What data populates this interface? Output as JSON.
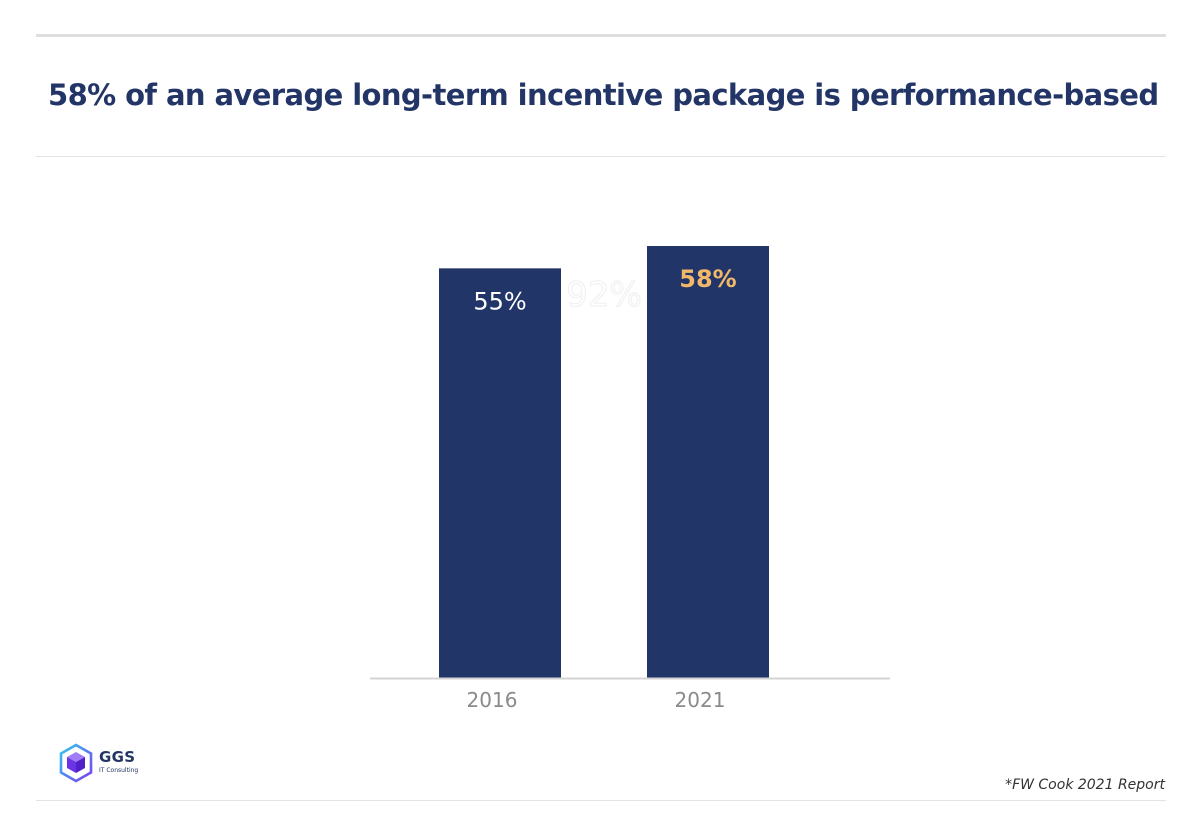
{
  "title": "58% of an average long-term incentive package is performance-based",
  "chart_data": {
    "type": "bar",
    "categories": [
      "2016",
      "2021"
    ],
    "values": [
      55,
      58
    ],
    "data_labels": [
      "55%",
      "58%"
    ],
    "ghost_label": "92%",
    "title": "58% of an average long-term incentive package is performance-based",
    "xlabel": "",
    "ylabel": "",
    "ylim": [
      0,
      62
    ],
    "grid": false,
    "legend": "none",
    "colors": {
      "bar": "#213568",
      "label_default": "#ffffff",
      "label_highlight": "#f2b86a",
      "axis": "#d3d3d3",
      "tick": "#8a8a8a",
      "ghost": "#f1f1f1"
    },
    "highlight_index": 1
  },
  "logo": {
    "name": "GGS",
    "subtitle": "IT Consulting",
    "icon": "cube-logo-icon"
  },
  "source": "*FW Cook 2021 Report"
}
